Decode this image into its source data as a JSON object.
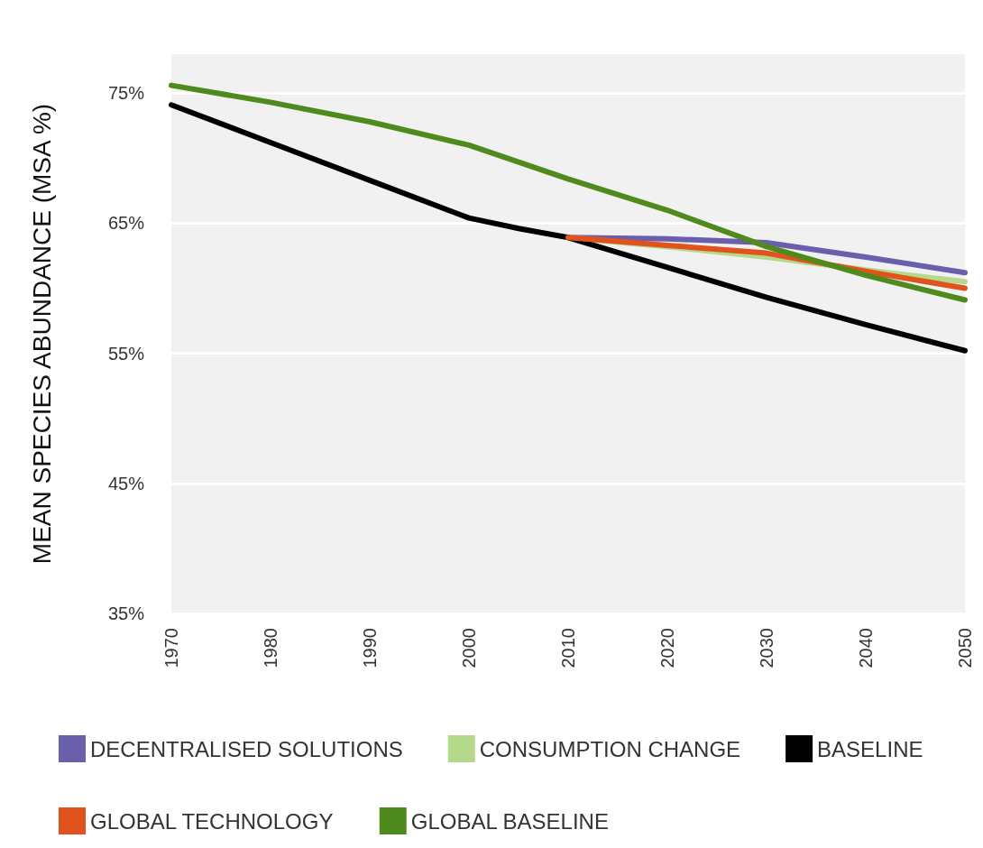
{
  "chart_data": {
    "type": "line",
    "ylabel": "MEAN SPECIES ABUNDANCE (MSA %)",
    "xlim": [
      1970,
      2050
    ],
    "xticks": [
      1970,
      1980,
      1990,
      2000,
      2010,
      2020,
      2030,
      2040,
      2050
    ],
    "ylim": [
      35,
      78
    ],
    "yticks": [
      {
        "value": 35,
        "label": "35%"
      },
      {
        "value": 45,
        "label": "45%"
      },
      {
        "value": 55,
        "label": "55%"
      },
      {
        "value": 65,
        "label": "65%"
      },
      {
        "value": 75,
        "label": "75%"
      }
    ],
    "grid": "y",
    "legend": "bottom",
    "marker": "none",
    "line_style": "solid",
    "series": [
      {
        "name": "DECENTRALISED SOLUTIONS",
        "color": "#6a5fad",
        "x": [
          2010,
          2020,
          2030,
          2040,
          2050
        ],
        "values": [
          63.9,
          63.8,
          63.5,
          62.4,
          61.2
        ]
      },
      {
        "name": "CONSUMPTION CHANGE",
        "color": "#b5d98a",
        "x": [
          2010,
          2020,
          2030,
          2040,
          2050
        ],
        "values": [
          63.9,
          63.2,
          62.4,
          61.4,
          60.5
        ]
      },
      {
        "name": "BASELINE",
        "color": "#000000",
        "x": [
          1970,
          1980,
          1990,
          2000,
          2005,
          2010,
          2020,
          2030,
          2040,
          2050
        ],
        "values": [
          74.1,
          71.2,
          68.3,
          65.4,
          64.6,
          63.9,
          61.6,
          59.3,
          57.2,
          55.2
        ]
      },
      {
        "name": "GLOBAL TECHNOLOGY",
        "color": "#e0531c",
        "x": [
          2010,
          2020,
          2030,
          2040,
          2050
        ],
        "values": [
          63.9,
          63.3,
          62.7,
          61.3,
          60.0
        ]
      },
      {
        "name": "GLOBAL BASELINE",
        "color": "#4f8a1e",
        "x": [
          1970,
          1980,
          1990,
          2000,
          2010,
          2020,
          2030,
          2040,
          2050
        ],
        "values": [
          75.6,
          74.3,
          72.8,
          71.0,
          68.4,
          66.0,
          63.2,
          61.0,
          59.1
        ]
      }
    ]
  }
}
